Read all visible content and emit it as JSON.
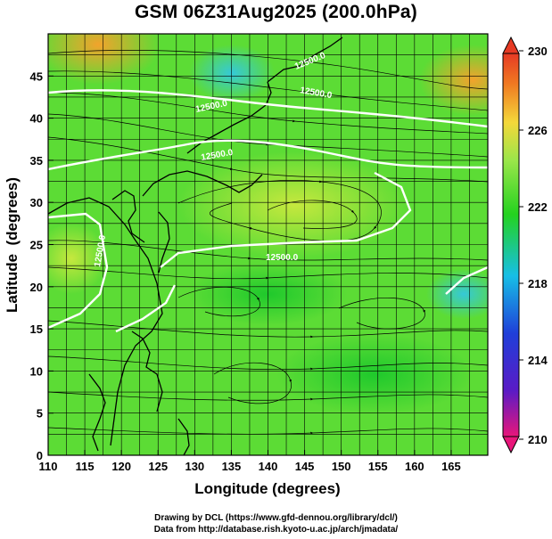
{
  "title": "GSM 06Z31Aug2025 (200.0hPa)",
  "axes": {
    "xlabel": "Longitude (degrees)",
    "ylabel": "Latitude  (degrees)",
    "xlim": [
      110,
      170
    ],
    "ylim": [
      0,
      50
    ],
    "xticks": [
      "110",
      "115",
      "120",
      "125",
      "130",
      "135",
      "140",
      "145",
      "150",
      "155",
      "160",
      "165"
    ],
    "yticks": [
      "0",
      "5",
      "10",
      "15",
      "20",
      "25",
      "30",
      "35",
      "40",
      "45"
    ]
  },
  "colorbar": {
    "ticks": [
      "230",
      "226",
      "222",
      "218",
      "214",
      "210"
    ],
    "range": [
      210,
      230
    ],
    "colors": [
      "#e8167a",
      "#4b1ec8",
      "#1f3fd9",
      "#17c8e6",
      "#24d21f",
      "#a8e84a",
      "#f6d23a",
      "#f07a22",
      "#e63a24"
    ]
  },
  "contour_labels": [
    "12500.0",
    "12500.0",
    "12500.0",
    "12500.0",
    "12500.0",
    "12500.0"
  ],
  "credits": {
    "line1": "Drawing by DCL (https://www.gfd-dennou.org/library/dcl/)",
    "line2": "Data from http://database.rish.kyoto-u.ac.jp/arch/jmadata/"
  },
  "chart_data": {
    "type": "heatmap",
    "title": "GSM 06Z31Aug2025 (200.0hPa)",
    "xlabel": "Longitude (degrees)",
    "ylabel": "Latitude  (degrees)",
    "xlim": [
      110,
      170
    ],
    "ylim": [
      0,
      50
    ],
    "colorbar_range": [
      210,
      230
    ],
    "contour_value": "12500.0",
    "grid": true,
    "legend": "right"
  }
}
